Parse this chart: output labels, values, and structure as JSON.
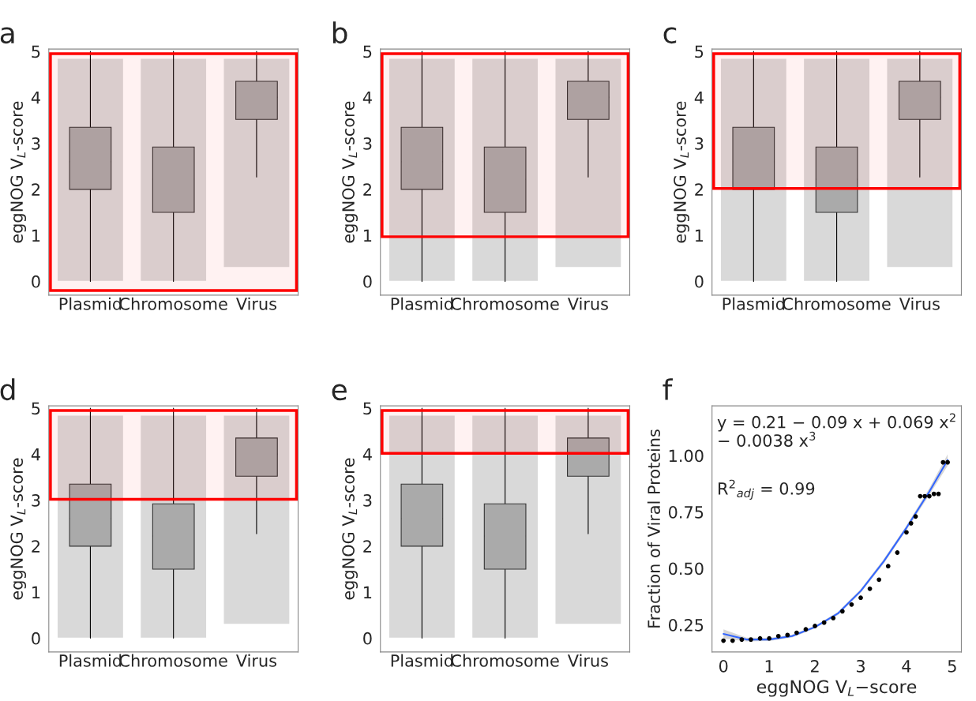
{
  "chart_data": [
    {
      "type": "box",
      "title": "a",
      "ylabel": "eggNOG V$_{L}$-score",
      "categories": [
        "Plasmid",
        "Chromosome",
        "Virus"
      ],
      "color": "#aaaaaa",
      "boxes": [
        {
          "low": 0,
          "q1": 2.0,
          "median": 2.6,
          "q3": 3.35,
          "high": 5
        },
        {
          "low": 0,
          "q1": 1.5,
          "median": 2.22,
          "q3": 2.92,
          "high": 5
        },
        {
          "low": 2.27,
          "q1": 3.52,
          "median": 4.0,
          "q3": 4.35,
          "high": 5
        }
      ],
      "series": [
        {
          "type": "bar",
          "color": "#d9d9d9",
          "base": [
            0,
            0,
            0.3
          ],
          "values": [
            4.85,
            4.85,
            4.55
          ]
        }
      ],
      "ylim": [
        -0.3,
        5.05
      ],
      "yticks": [
        0,
        1,
        2,
        3,
        4,
        5
      ],
      "bands": [
        {
          "axis": "y",
          "from": -0.2,
          "to": 4.95,
          "color": "#ff0000"
        }
      ]
    },
    {
      "type": "box",
      "title": "b",
      "ylabel": "eggNOG V$_{L}$-score",
      "categories": [
        "Plasmid",
        "Chromosome",
        "Virus"
      ],
      "color": "#aaaaaa",
      "boxes": [
        {
          "low": 0,
          "q1": 2.0,
          "median": 2.6,
          "q3": 3.35,
          "high": 5
        },
        {
          "low": 0,
          "q1": 1.5,
          "median": 2.22,
          "q3": 2.92,
          "high": 5
        },
        {
          "low": 2.27,
          "q1": 3.52,
          "median": 4.0,
          "q3": 4.35,
          "high": 5
        }
      ],
      "series": [
        {
          "type": "bar",
          "color": "#d9d9d9",
          "base": [
            0,
            0,
            0.3
          ],
          "values": [
            4.85,
            4.85,
            4.55
          ]
        }
      ],
      "ylim": [
        -0.3,
        5.05
      ],
      "yticks": [
        0,
        1,
        2,
        3,
        4,
        5
      ],
      "bands": [
        {
          "axis": "y",
          "from": 0.97,
          "to": 4.95,
          "color": "#ff0000"
        }
      ]
    },
    {
      "type": "box",
      "title": "c",
      "ylabel": "eggNOG V$_{L}$-score",
      "categories": [
        "Plasmid",
        "Chromosome",
        "Virus"
      ],
      "color": "#aaaaaa",
      "boxes": [
        {
          "low": 0,
          "q1": 2.0,
          "median": 2.6,
          "q3": 3.35,
          "high": 5
        },
        {
          "low": 0,
          "q1": 1.5,
          "median": 2.22,
          "q3": 2.92,
          "high": 5
        },
        {
          "low": 2.27,
          "q1": 3.52,
          "median": 4.0,
          "q3": 4.35,
          "high": 5
        }
      ],
      "series": [
        {
          "type": "bar",
          "color": "#d9d9d9",
          "base": [
            0,
            0,
            0.3
          ],
          "values": [
            4.85,
            4.85,
            4.55
          ]
        }
      ],
      "ylim": [
        -0.3,
        5.05
      ],
      "yticks": [
        0,
        1,
        2,
        3,
        4,
        5
      ],
      "bands": [
        {
          "axis": "y",
          "from": 2.02,
          "to": 4.95,
          "color": "#ff0000"
        }
      ]
    },
    {
      "type": "box",
      "title": "d",
      "ylabel": "eggNOG V$_{L}$-score",
      "categories": [
        "Plasmid",
        "Chromosome",
        "Virus"
      ],
      "color": "#aaaaaa",
      "boxes": [
        {
          "low": 0,
          "q1": 2.0,
          "median": 2.6,
          "q3": 3.35,
          "high": 5
        },
        {
          "low": 0,
          "q1": 1.5,
          "median": 2.22,
          "q3": 2.92,
          "high": 5
        },
        {
          "low": 2.27,
          "q1": 3.52,
          "median": 4.0,
          "q3": 4.35,
          "high": 5
        }
      ],
      "series": [
        {
          "type": "bar",
          "color": "#d9d9d9",
          "base": [
            0,
            0,
            0.3
          ],
          "values": [
            4.85,
            4.85,
            4.55
          ]
        }
      ],
      "ylim": [
        -0.3,
        5.05
      ],
      "yticks": [
        0,
        1,
        2,
        3,
        4,
        5
      ],
      "bands": [
        {
          "axis": "y",
          "from": 3.02,
          "to": 4.95,
          "color": "#ff0000"
        }
      ]
    },
    {
      "type": "box",
      "title": "e",
      "ylabel": "eggNOG V$_{L}$-score",
      "categories": [
        "Plasmid",
        "Chromosome",
        "Virus"
      ],
      "color": "#aaaaaa",
      "boxes": [
        {
          "low": 0,
          "q1": 2.0,
          "median": 2.6,
          "q3": 3.35,
          "high": 5
        },
        {
          "low": 0,
          "q1": 1.5,
          "median": 2.22,
          "q3": 2.92,
          "high": 5
        },
        {
          "low": 2.27,
          "q1": 3.52,
          "median": 4.0,
          "q3": 4.35,
          "high": 5
        }
      ],
      "series": [
        {
          "type": "bar",
          "color": "#d9d9d9",
          "base": [
            0,
            0,
            0.3
          ],
          "values": [
            4.85,
            4.85,
            4.55
          ]
        }
      ],
      "ylim": [
        -0.3,
        5.05
      ],
      "yticks": [
        0,
        1,
        2,
        3,
        4,
        5
      ],
      "bands": [
        {
          "axis": "y",
          "from": 4.02,
          "to": 4.95,
          "color": "#ff0000"
        }
      ]
    },
    {
      "type": "scatter",
      "title": "f",
      "xlabel": "eggNOG V$_{L}$−score",
      "ylabel": "Fraction of Viral Proteins",
      "xlim": [
        -0.25,
        5.2
      ],
      "xticks": [
        0,
        1,
        2,
        3,
        4,
        5
      ],
      "ylim": [
        0.13,
        1.22
      ],
      "yticks": [
        {
          "value": 0.25,
          "label": "0.25"
        },
        {
          "value": 0.5,
          "label": "0.50"
        },
        {
          "value": 0.75,
          "label": "0.75"
        },
        {
          "value": 1.0,
          "label": "1.00"
        }
      ],
      "annotations": [
        "y = 0.21 − 0.09 x + 0.069 x$^{2}$ − 0.0038 x$^{3}$",
        "R$^{2}$$_{adj}$ = 0.99"
      ],
      "series": [
        {
          "type": "scatter",
          "marker": "circle",
          "color": "#000000",
          "x": [
            0,
            0.2,
            0.4,
            0.6,
            0.8,
            1.0,
            1.2,
            1.4,
            1.6,
            1.8,
            2.0,
            2.2,
            2.4,
            2.6,
            2.8,
            3.0,
            3.2,
            3.4,
            3.6,
            3.8,
            4.0,
            4.1,
            4.2,
            4.3,
            4.4,
            4.5,
            4.6,
            4.7,
            4.8,
            4.9
          ],
          "values": [
            0.18,
            0.18,
            0.185,
            0.185,
            0.19,
            0.19,
            0.2,
            0.205,
            0.215,
            0.23,
            0.245,
            0.26,
            0.28,
            0.31,
            0.34,
            0.37,
            0.41,
            0.45,
            0.51,
            0.57,
            0.66,
            0.7,
            0.73,
            0.82,
            0.82,
            0.82,
            0.83,
            0.83,
            0.97,
            0.97
          ]
        },
        {
          "type": "line",
          "color": "#3366ff",
          "x": [
            0,
            0.5,
            1,
            1.5,
            2,
            2.5,
            3,
            3.5,
            4,
            4.5,
            4.9
          ],
          "values": [
            0.21,
            0.185,
            0.185,
            0.2,
            0.24,
            0.3,
            0.4,
            0.53,
            0.68,
            0.84,
            0.98
          ],
          "lower": [
            0.19,
            0.177,
            0.178,
            0.194,
            0.234,
            0.293,
            0.392,
            0.52,
            0.67,
            0.825,
            0.955
          ],
          "upper": [
            0.23,
            0.193,
            0.192,
            0.206,
            0.246,
            0.307,
            0.408,
            0.54,
            0.69,
            0.855,
            1.005
          ]
        }
      ]
    }
  ]
}
